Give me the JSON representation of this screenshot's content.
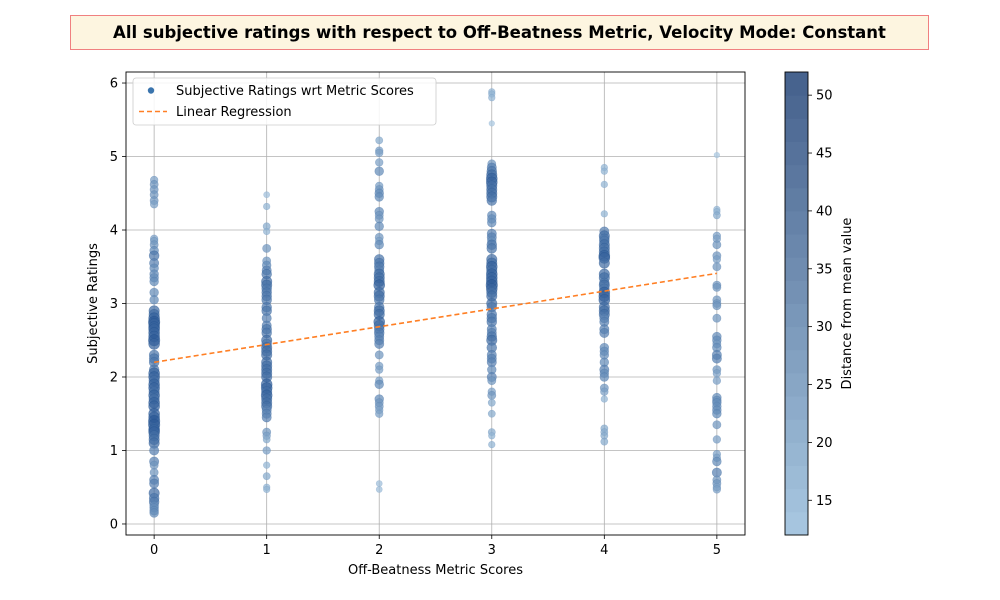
{
  "title": "All subjective ratings with respect to Off-Beatness Metric, Velocity Mode: Constant",
  "colors": {
    "points_light": "#a9c8e1",
    "points_dark": "#1f4f8e",
    "regression": "#ff7f24",
    "grid": "#b0b0b0",
    "title_fill": "#fdf5e0",
    "title_border": "#f08080"
  },
  "chart_data": {
    "type": "scatter",
    "xlabel": "Off-Beatness Metric Scores",
    "ylabel": "Subjective Ratings",
    "xlim": [
      -0.25,
      5.25
    ],
    "ylim": [
      -0.15,
      6.15
    ],
    "x_ticks": [
      0,
      1,
      2,
      3,
      4,
      5
    ],
    "y_ticks": [
      0,
      1,
      2,
      3,
      4,
      5,
      6
    ],
    "grid": true,
    "legend": {
      "placement": "top-left",
      "entries": [
        "Subjective Ratings wrt Metric Scores",
        "Linear Regression"
      ]
    },
    "colorbar": {
      "label": "Distance from mean value",
      "range": [
        12,
        52
      ],
      "ticks": [
        15,
        20,
        25,
        30,
        35,
        40,
        45,
        50
      ]
    },
    "regression": {
      "name": "Linear Regression",
      "x": [
        0,
        5
      ],
      "y": [
        2.2,
        3.41
      ]
    },
    "series": [
      {
        "name": "Subjective Ratings wrt Metric Scores",
        "clusters": [
          {
            "x": 0,
            "y": [
              4.68,
              4.62,
              4.55,
              4.48,
              4.4,
              4.35,
              3.88,
              3.85,
              3.8,
              3.72,
              3.65,
              3.55,
              3.48,
              3.4,
              3.35,
              3.3,
              3.15,
              3.05,
              2.9,
              2.85,
              2.8,
              2.75,
              2.72,
              2.68,
              2.65,
              2.6,
              2.55,
              2.5,
              2.45,
              2.3,
              2.25,
              2.2,
              2.1,
              2.05,
              2.0,
              1.95,
              1.9,
              1.85,
              1.8,
              1.75,
              1.7,
              1.65,
              1.6,
              1.5,
              1.45,
              1.4,
              1.35,
              1.3,
              1.28,
              1.25,
              1.2,
              1.15,
              1.1,
              1.0,
              0.85,
              0.8,
              0.7,
              0.6,
              0.55,
              0.42,
              0.35,
              0.3,
              0.25,
              0.22,
              0.18,
              0.15
            ]
          },
          {
            "x": 1,
            "y": [
              4.48,
              4.32,
              4.05,
              3.98,
              3.75,
              3.58,
              3.52,
              3.45,
              3.4,
              3.3,
              3.25,
              3.2,
              3.15,
              3.1,
              3.05,
              2.95,
              2.9,
              2.8,
              2.7,
              2.65,
              2.6,
              2.5,
              2.45,
              2.4,
              2.35,
              2.3,
              2.2,
              2.15,
              2.1,
              2.05,
              2.0,
              1.9,
              1.85,
              1.8,
              1.75,
              1.7,
              1.65,
              1.6,
              1.55,
              1.5,
              1.45,
              1.25,
              1.2,
              1.15,
              1.0,
              0.8,
              0.65,
              0.5,
              0.47
            ]
          },
          {
            "x": 2,
            "y": [
              5.22,
              5.08,
              5.05,
              4.92,
              4.8,
              4.6,
              4.55,
              4.5,
              4.45,
              4.25,
              4.2,
              4.15,
              4.05,
              3.9,
              3.85,
              3.8,
              3.6,
              3.55,
              3.5,
              3.45,
              3.4,
              3.35,
              3.3,
              3.25,
              3.15,
              3.1,
              3.05,
              2.95,
              2.9,
              2.85,
              2.75,
              2.7,
              2.65,
              2.6,
              2.55,
              2.5,
              2.45,
              2.3,
              2.15,
              2.1,
              1.95,
              1.9,
              1.7,
              1.65,
              1.6,
              1.55,
              1.5,
              0.55,
              0.47
            ]
          },
          {
            "x": 3,
            "y": [
              5.88,
              5.85,
              5.8,
              5.45,
              4.9,
              4.85,
              4.8,
              4.75,
              4.7,
              4.65,
              4.6,
              4.55,
              4.5,
              4.45,
              4.4,
              4.2,
              4.15,
              4.1,
              3.95,
              3.9,
              3.85,
              3.8,
              3.75,
              3.6,
              3.55,
              3.5,
              3.45,
              3.4,
              3.35,
              3.3,
              3.25,
              3.2,
              3.15,
              3.1,
              3.0,
              2.95,
              2.85,
              2.8,
              2.75,
              2.65,
              2.6,
              2.55,
              2.5,
              2.4,
              2.3,
              2.25,
              2.2,
              2.1,
              2.0,
              1.95,
              1.8,
              1.75,
              1.65,
              1.5,
              1.25,
              1.2,
              1.08
            ]
          },
          {
            "x": 4,
            "y": [
              4.85,
              4.8,
              4.62,
              4.22,
              3.98,
              3.92,
              3.88,
              3.85,
              3.8,
              3.75,
              3.7,
              3.65,
              3.62,
              3.55,
              3.4,
              3.35,
              3.28,
              3.25,
              3.2,
              3.15,
              3.1,
              3.05,
              2.95,
              2.9,
              2.85,
              2.8,
              2.75,
              2.65,
              2.6,
              2.4,
              2.35,
              2.3,
              2.2,
              2.1,
              2.05,
              2.0,
              1.85,
              1.8,
              1.7,
              1.3,
              1.25,
              1.2,
              1.12
            ]
          },
          {
            "x": 5,
            "y": [
              5.02,
              4.28,
              4.25,
              4.2,
              3.92,
              3.88,
              3.8,
              3.65,
              3.6,
              3.5,
              3.25,
              3.22,
              3.05,
              3.0,
              2.97,
              2.8,
              2.55,
              2.5,
              2.45,
              2.4,
              2.3,
              2.25,
              2.1,
              2.05,
              1.95,
              1.72,
              1.68,
              1.65,
              1.6,
              1.55,
              1.5,
              1.35,
              1.15,
              0.95,
              0.9,
              0.85,
              0.7,
              0.6,
              0.55,
              0.5,
              0.47
            ]
          }
        ]
      }
    ]
  }
}
